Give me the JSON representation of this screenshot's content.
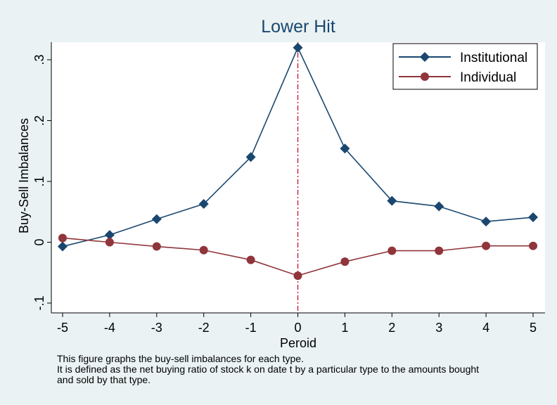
{
  "chart_data": {
    "type": "line",
    "title": "Lower Hit",
    "xlabel": "Peroid",
    "ylabel": "Buy-Sell Imbalances",
    "x": [
      -5,
      -4,
      -3,
      -2,
      -1,
      0,
      1,
      2,
      3,
      4,
      5
    ],
    "xticks": [
      "-5",
      "-4",
      "-3",
      "-2",
      "-1",
      "0",
      "1",
      "2",
      "3",
      "4",
      "5"
    ],
    "yticks": [
      {
        "value": -0.1,
        "label": "-.1"
      },
      {
        "value": 0,
        "label": "0"
      },
      {
        "value": 0.1,
        "label": ".1"
      },
      {
        "value": 0.2,
        "label": ".2"
      },
      {
        "value": 0.3,
        "label": ".3"
      }
    ],
    "xlim": [
      -5,
      5
    ],
    "ylim": [
      -0.1,
      0.3
    ],
    "grid": false,
    "legend_position": "top-right",
    "reference_line": {
      "x": 0,
      "style": "dash-dot",
      "color": "#c8102e"
    },
    "series": [
      {
        "name": "Institutional",
        "marker": "diamond",
        "color": "#1a476f",
        "values": [
          -0.007,
          0.012,
          0.038,
          0.063,
          0.14,
          0.32,
          0.154,
          0.068,
          0.059,
          0.034,
          0.041
        ]
      },
      {
        "name": "Individual",
        "marker": "circle",
        "color": "#90353b",
        "values": [
          0.007,
          0.0,
          -0.007,
          -0.013,
          -0.029,
          -0.055,
          -0.032,
          -0.014,
          -0.014,
          -0.006,
          -0.006
        ]
      }
    ]
  },
  "notes": [
    "This figure graphs the buy-sell imbalances for each type.",
    "It is defined as the net buying ratio of stock k on date t by a particular type to the amounts bought",
    "and sold by that type."
  ]
}
